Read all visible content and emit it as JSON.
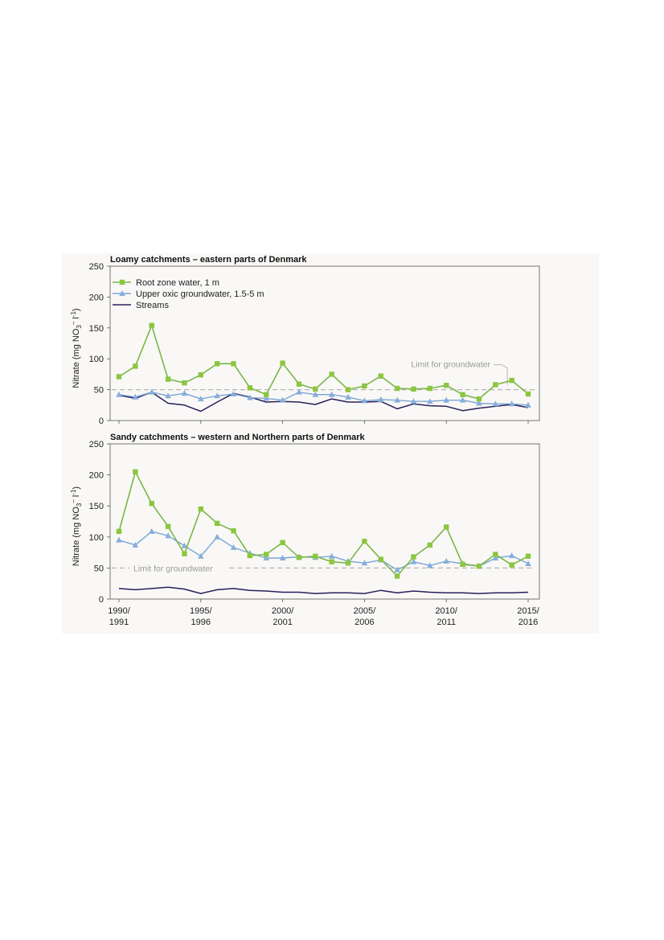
{
  "colors": {
    "root_zone": "#7ab648",
    "root_zone_marker": "#8cc63f",
    "groundwater": "#7aa6d6",
    "groundwater_marker": "#86aedc",
    "streams": "#2a1f5c",
    "limit": "#b5b5b5",
    "background": "#f9f8f6"
  },
  "legend": [
    {
      "label": "Root zone water, 1 m",
      "marker": "square"
    },
    {
      "label": "Upper oxic groundwater, 1.5-5 m",
      "marker": "triangle"
    },
    {
      "label": "Streams",
      "marker": "none"
    }
  ],
  "x_tick_labels": [
    {
      "line1": "1990/",
      "line2": "1991"
    },
    {
      "line1": "1995/",
      "line2": "1996"
    },
    {
      "line1": "2000/",
      "line2": "2001"
    },
    {
      "line1": "2005/",
      "line2": "2006"
    },
    {
      "line1": "2010/",
      "line2": "2011"
    },
    {
      "line1": "2015/",
      "line2": "2016"
    }
  ],
  "ylabel_parts": {
    "main": "Nitrate (mg NO",
    "sub": "3",
    "sup1": "–",
    "mid": " l",
    "sup2": "-1",
    "end": ")"
  },
  "chart_data": [
    {
      "type": "line",
      "title": "Loamy catchments – eastern parts of Denmark",
      "ylim": [
        0,
        250
      ],
      "yticks": [
        0,
        50,
        100,
        150,
        200,
        250
      ],
      "x": [
        "1990/1991",
        "1991/1992",
        "1992/1993",
        "1993/1994",
        "1994/1995",
        "1995/1996",
        "1996/1997",
        "1997/1998",
        "1998/1999",
        "1999/2000",
        "2000/2001",
        "2001/2002",
        "2002/2003",
        "2003/2004",
        "2004/2005",
        "2005/2006",
        "2006/2007",
        "2007/2008",
        "2008/2009",
        "2009/2010",
        "2010/2011",
        "2011/2012",
        "2012/2013",
        "2013/2014",
        "2014/2015",
        "2015/2016"
      ],
      "reference_line": {
        "value": 50,
        "label": "Limit for groundwater"
      },
      "series": [
        {
          "name": "Root zone water, 1 m",
          "values": [
            71,
            88,
            154,
            67,
            61,
            74,
            92,
            92,
            53,
            42,
            93,
            59,
            51,
            75,
            50,
            56,
            72,
            52,
            51,
            52,
            57,
            42,
            35,
            58,
            65,
            43
          ]
        },
        {
          "name": "Upper oxic groundwater, 1.5-5 m",
          "values": [
            42,
            38,
            46,
            40,
            44,
            35,
            40,
            43,
            37,
            36,
            33,
            46,
            42,
            42,
            38,
            32,
            34,
            33,
            31,
            31,
            33,
            33,
            28,
            27,
            27,
            25
          ]
        },
        {
          "name": "Streams",
          "values": [
            41,
            36,
            46,
            28,
            25,
            15,
            30,
            44,
            38,
            30,
            31,
            30,
            26,
            35,
            30,
            30,
            31,
            19,
            27,
            24,
            23,
            16,
            20,
            23,
            26,
            21
          ]
        }
      ]
    },
    {
      "type": "line",
      "title": "Sandy catchments – western and Northern parts of Denmark",
      "ylim": [
        0,
        250
      ],
      "yticks": [
        0,
        50,
        100,
        150,
        200,
        250
      ],
      "x": [
        "1990/1991",
        "1991/1992",
        "1992/1993",
        "1993/1994",
        "1994/1995",
        "1995/1996",
        "1996/1997",
        "1997/1998",
        "1998/1999",
        "1999/2000",
        "2000/2001",
        "2001/2002",
        "2002/2003",
        "2003/2004",
        "2004/2005",
        "2005/2006",
        "2006/2007",
        "2007/2008",
        "2008/2009",
        "2009/2010",
        "2010/2011",
        "2011/2012",
        "2012/2013",
        "2013/2014",
        "2014/2015",
        "2015/2016"
      ],
      "reference_line": {
        "value": 50,
        "label": "Limit for groundwater"
      },
      "series": [
        {
          "name": "Root zone water, 1 m",
          "values": [
            109,
            205,
            154,
            117,
            73,
            145,
            122,
            110,
            70,
            72,
            91,
            67,
            69,
            60,
            58,
            93,
            64,
            37,
            68,
            87,
            116,
            56,
            53,
            72,
            55,
            69
          ]
        },
        {
          "name": "Upper oxic groundwater, 1.5-5 m",
          "values": [
            95,
            87,
            109,
            102,
            86,
            69,
            100,
            83,
            74,
            66,
            66,
            68,
            67,
            69,
            61,
            58,
            63,
            47,
            60,
            54,
            61,
            57,
            53,
            66,
            70,
            57
          ]
        },
        {
          "name": "Streams",
          "values": [
            17,
            15,
            17,
            19,
            16,
            9,
            15,
            17,
            14,
            13,
            11,
            11,
            9,
            10,
            10,
            9,
            14,
            10,
            13,
            11,
            10,
            10,
            9,
            10,
            10,
            11
          ]
        }
      ]
    }
  ]
}
